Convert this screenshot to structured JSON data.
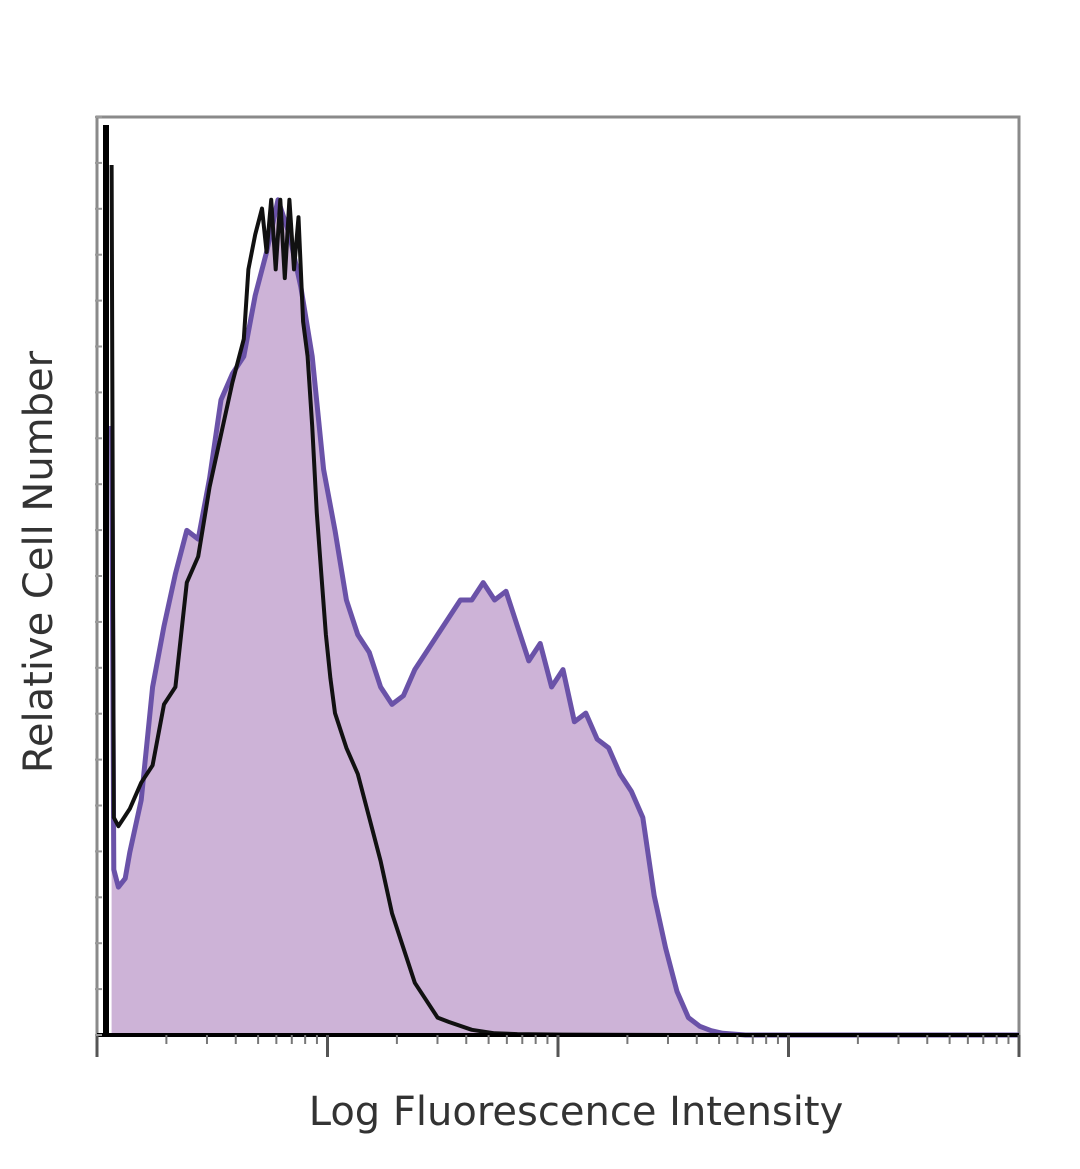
{
  "chart_data": {
    "type": "area",
    "title": "",
    "xlabel": "Log Fluorescence Intensity",
    "ylabel": "Relative Cell Number",
    "x_scale": "log",
    "xlim": [
      0,
      4
    ],
    "ylim": [
      0,
      100
    ],
    "grid": false,
    "legend": "none",
    "series": [
      {
        "role": "control",
        "style": "line",
        "color": "#111111",
        "x": [
          0.02,
          0.03,
          0.05,
          0.1,
          0.15,
          0.2,
          0.25,
          0.3,
          0.35,
          0.4,
          0.45,
          0.5,
          0.55,
          0.6,
          0.62,
          0.65,
          0.68,
          0.7,
          0.72,
          0.74,
          0.76,
          0.78,
          0.8,
          0.82,
          0.84,
          0.86,
          0.88,
          0.9,
          0.92,
          0.94,
          0.96,
          0.98,
          1.0,
          1.05,
          1.1,
          1.15,
          1.2,
          1.25,
          1.3,
          1.35,
          1.4,
          1.45,
          1.5,
          1.6,
          1.7,
          1.8,
          2.0,
          2.5,
          3.0,
          3.5,
          4.0
        ],
        "y": [
          100,
          25,
          24,
          26,
          29,
          31,
          38,
          40,
          52,
          55,
          63,
          69,
          75,
          80,
          88,
          92,
          95,
          90,
          96,
          88,
          96,
          87,
          96,
          88,
          94,
          82,
          78,
          70,
          60,
          53,
          46,
          41,
          37,
          33,
          30,
          25,
          20,
          14,
          10,
          6,
          4,
          2,
          1.5,
          0.6,
          0.2,
          0.1,
          0.05,
          0,
          0,
          0,
          0
        ]
      },
      {
        "role": "sample",
        "style": "filled",
        "color": "#6a52a8",
        "fill": "#cdb3d7",
        "x": [
          0.02,
          0.03,
          0.05,
          0.08,
          0.1,
          0.15,
          0.2,
          0.25,
          0.3,
          0.35,
          0.4,
          0.45,
          0.5,
          0.55,
          0.6,
          0.65,
          0.7,
          0.75,
          0.8,
          0.85,
          0.9,
          0.95,
          1.0,
          1.05,
          1.1,
          1.15,
          1.2,
          1.25,
          1.3,
          1.35,
          1.4,
          1.45,
          1.5,
          1.55,
          1.6,
          1.65,
          1.7,
          1.75,
          1.8,
          1.85,
          1.9,
          1.95,
          2.0,
          2.05,
          2.1,
          2.15,
          2.2,
          2.25,
          2.3,
          2.35,
          2.4,
          2.45,
          2.5,
          2.55,
          2.6,
          2.65,
          2.7,
          2.75,
          2.8,
          3.0,
          3.5,
          4.0
        ],
        "y": [
          70,
          19,
          17,
          18,
          21,
          27,
          40,
          47,
          53,
          58,
          57,
          64,
          73,
          76,
          78,
          85,
          90,
          96,
          92,
          86,
          78,
          65,
          58,
          50,
          46,
          44,
          40,
          38,
          39,
          42,
          44,
          46,
          48,
          50,
          50,
          52,
          50,
          51,
          47,
          43,
          45,
          40,
          42,
          36,
          37,
          34,
          33,
          30,
          28,
          25,
          16,
          10,
          5,
          2,
          1,
          0.5,
          0.2,
          0.1,
          0,
          0,
          0,
          0
        ]
      }
    ]
  }
}
